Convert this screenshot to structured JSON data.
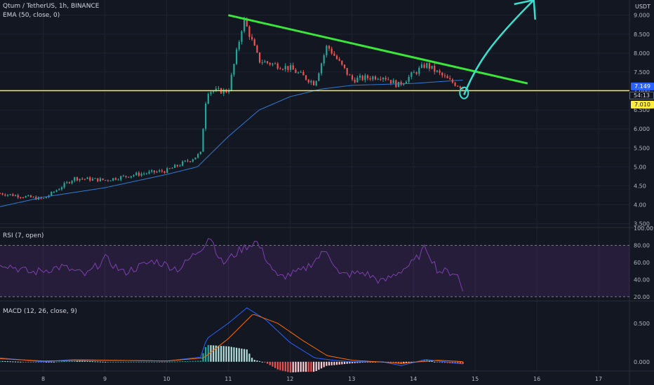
{
  "header": {
    "symbol": "Qtum / TetherUS, 1h, BINANCE",
    "ema_label": "EMA (50, close, 0)",
    "rsi_label": "RSI (7, open)",
    "macd_label": "MACD (12, 26, close, 9)",
    "currency": "USDT"
  },
  "badges": {
    "price": "7.149",
    "timer": "54:13",
    "hline": "7.010"
  },
  "colors": {
    "background": "#131722",
    "grid": "#1f2330",
    "up": "#26a69a",
    "down": "#ef5350",
    "ema": "#2e7bd6",
    "rsi": "#7e3fae",
    "macd": "#2962ff",
    "signal": "#ff6d00",
    "trendline": "#39e639",
    "support": "#ffeb3b",
    "arrow": "#38e0d0",
    "price_badge": "#2962ff"
  },
  "chart_data": [
    {
      "type": "candlestick",
      "name": "price",
      "y_ticks": [
        3.5,
        4.0,
        4.5,
        5.0,
        5.5,
        6.0,
        6.5,
        7.0,
        7.5,
        8.0,
        8.5,
        9.0
      ],
      "y_tick_labels": [
        "3.500",
        "4.00",
        "4.50",
        "5.00",
        "5.500",
        "6.000",
        "6.500",
        "7.000",
        "7.500",
        "8.000",
        "8.500",
        "9.000"
      ],
      "ylim": [
        3.4,
        9.4
      ],
      "x_day_labels": [
        "8",
        "9",
        "10",
        "11",
        "12",
        "13",
        "14",
        "15",
        "16",
        "17"
      ],
      "x_range_days": [
        7.3,
        17.5
      ],
      "series_summary": [
        {
          "day": 7.3,
          "close": 4.3
        },
        {
          "day": 8.0,
          "close": 4.15
        },
        {
          "day": 8.5,
          "close": 4.7
        },
        {
          "day": 9.0,
          "close": 4.65
        },
        {
          "day": 9.5,
          "close": 4.8
        },
        {
          "day": 10.0,
          "close": 4.9
        },
        {
          "day": 10.4,
          "close": 5.2
        },
        {
          "day": 10.55,
          "close": 5.35
        },
        {
          "day": 10.65,
          "close": 7.0
        },
        {
          "day": 11.0,
          "close": 7.0
        },
        {
          "day": 11.25,
          "close": 8.9
        },
        {
          "day": 11.5,
          "close": 7.8
        },
        {
          "day": 12.0,
          "close": 7.6
        },
        {
          "day": 12.4,
          "close": 7.2
        },
        {
          "day": 12.6,
          "close": 8.2
        },
        {
          "day": 13.0,
          "close": 7.3
        },
        {
          "day": 13.5,
          "close": 7.4
        },
        {
          "day": 13.75,
          "close": 7.15
        },
        {
          "day": 14.2,
          "close": 7.7
        },
        {
          "day": 14.6,
          "close": 7.25
        },
        {
          "day": 14.8,
          "close": 7.1
        }
      ],
      "ema50_summary": [
        {
          "day": 7.3,
          "value": 3.95
        },
        {
          "day": 8.0,
          "value": 4.2
        },
        {
          "day": 9.0,
          "value": 4.45
        },
        {
          "day": 10.0,
          "value": 4.8
        },
        {
          "day": 10.5,
          "value": 5.0
        },
        {
          "day": 11.0,
          "value": 5.8
        },
        {
          "day": 11.5,
          "value": 6.5
        },
        {
          "day": 12.0,
          "value": 6.85
        },
        {
          "day": 12.5,
          "value": 7.05
        },
        {
          "day": 13.0,
          "value": 7.15
        },
        {
          "day": 14.0,
          "value": 7.2
        },
        {
          "day": 14.9,
          "value": 7.3
        }
      ],
      "annotations": {
        "trendline": {
          "from": {
            "day": 11.0,
            "value": 9.0
          },
          "to": {
            "day": 15.85,
            "value": 7.2
          }
        },
        "support_level": 7.01,
        "arrow": {
          "from": {
            "day": 14.82,
            "value": 6.9
          },
          "to": {
            "day": 15.95,
            "value": 9.4
          }
        },
        "circle": {
          "day": 14.82,
          "value": 6.95
        }
      }
    },
    {
      "type": "line",
      "name": "RSI",
      "y_ticks": [
        20,
        40,
        60,
        80,
        100
      ],
      "y_tick_labels": [
        "20.00",
        "40.00",
        "60.00",
        "80.00",
        "100.00"
      ],
      "ylim": [
        15,
        100
      ],
      "band": [
        20,
        80
      ],
      "series_summary": [
        {
          "day": 7.3,
          "value": 60
        },
        {
          "day": 7.8,
          "value": 48
        },
        {
          "day": 8.3,
          "value": 55
        },
        {
          "day": 8.7,
          "value": 45
        },
        {
          "day": 9.0,
          "value": 65
        },
        {
          "day": 9.3,
          "value": 48
        },
        {
          "day": 9.8,
          "value": 62
        },
        {
          "day": 10.2,
          "value": 52
        },
        {
          "day": 10.6,
          "value": 80
        },
        {
          "day": 10.7,
          "value": 92
        },
        {
          "day": 10.9,
          "value": 58
        },
        {
          "day": 11.2,
          "value": 75
        },
        {
          "day": 11.45,
          "value": 85
        },
        {
          "day": 11.8,
          "value": 42
        },
        {
          "day": 12.2,
          "value": 50
        },
        {
          "day": 12.6,
          "value": 75
        },
        {
          "day": 12.8,
          "value": 45
        },
        {
          "day": 13.2,
          "value": 48
        },
        {
          "day": 13.5,
          "value": 37
        },
        {
          "day": 14.0,
          "value": 60
        },
        {
          "day": 14.2,
          "value": 78
        },
        {
          "day": 14.4,
          "value": 50
        },
        {
          "day": 14.7,
          "value": 48
        },
        {
          "day": 14.82,
          "value": 22
        }
      ]
    },
    {
      "type": "histogram+line",
      "name": "MACD",
      "y_ticks": [
        0.0,
        0.5
      ],
      "y_tick_labels": [
        "0.000",
        "0.500"
      ],
      "ylim": [
        -0.12,
        0.78
      ],
      "macd_summary": [
        {
          "day": 7.3,
          "value": 0.05
        },
        {
          "day": 8.0,
          "value": 0.0
        },
        {
          "day": 8.5,
          "value": 0.03
        },
        {
          "day": 9.0,
          "value": 0.02
        },
        {
          "day": 10.0,
          "value": 0.01
        },
        {
          "day": 10.55,
          "value": 0.06
        },
        {
          "day": 10.65,
          "value": 0.3
        },
        {
          "day": 11.0,
          "value": 0.5
        },
        {
          "day": 11.3,
          "value": 0.7
        },
        {
          "day": 11.6,
          "value": 0.55
        },
        {
          "day": 12.0,
          "value": 0.25
        },
        {
          "day": 12.4,
          "value": 0.05
        },
        {
          "day": 12.7,
          "value": 0.02
        },
        {
          "day": 13.0,
          "value": 0.0
        },
        {
          "day": 13.5,
          "value": 0.0
        },
        {
          "day": 13.8,
          "value": -0.05
        },
        {
          "day": 14.2,
          "value": 0.03
        },
        {
          "day": 14.82,
          "value": -0.03
        }
      ],
      "signal_summary": [
        {
          "day": 7.3,
          "value": 0.04
        },
        {
          "day": 8.0,
          "value": 0.01
        },
        {
          "day": 9.0,
          "value": 0.02
        },
        {
          "day": 10.0,
          "value": 0.01
        },
        {
          "day": 10.6,
          "value": 0.05
        },
        {
          "day": 11.0,
          "value": 0.3
        },
        {
          "day": 11.4,
          "value": 0.62
        },
        {
          "day": 11.8,
          "value": 0.5
        },
        {
          "day": 12.2,
          "value": 0.28
        },
        {
          "day": 12.6,
          "value": 0.08
        },
        {
          "day": 13.0,
          "value": 0.02
        },
        {
          "day": 13.8,
          "value": -0.02
        },
        {
          "day": 14.4,
          "value": 0.02
        },
        {
          "day": 14.82,
          "value": 0.0
        }
      ]
    }
  ]
}
